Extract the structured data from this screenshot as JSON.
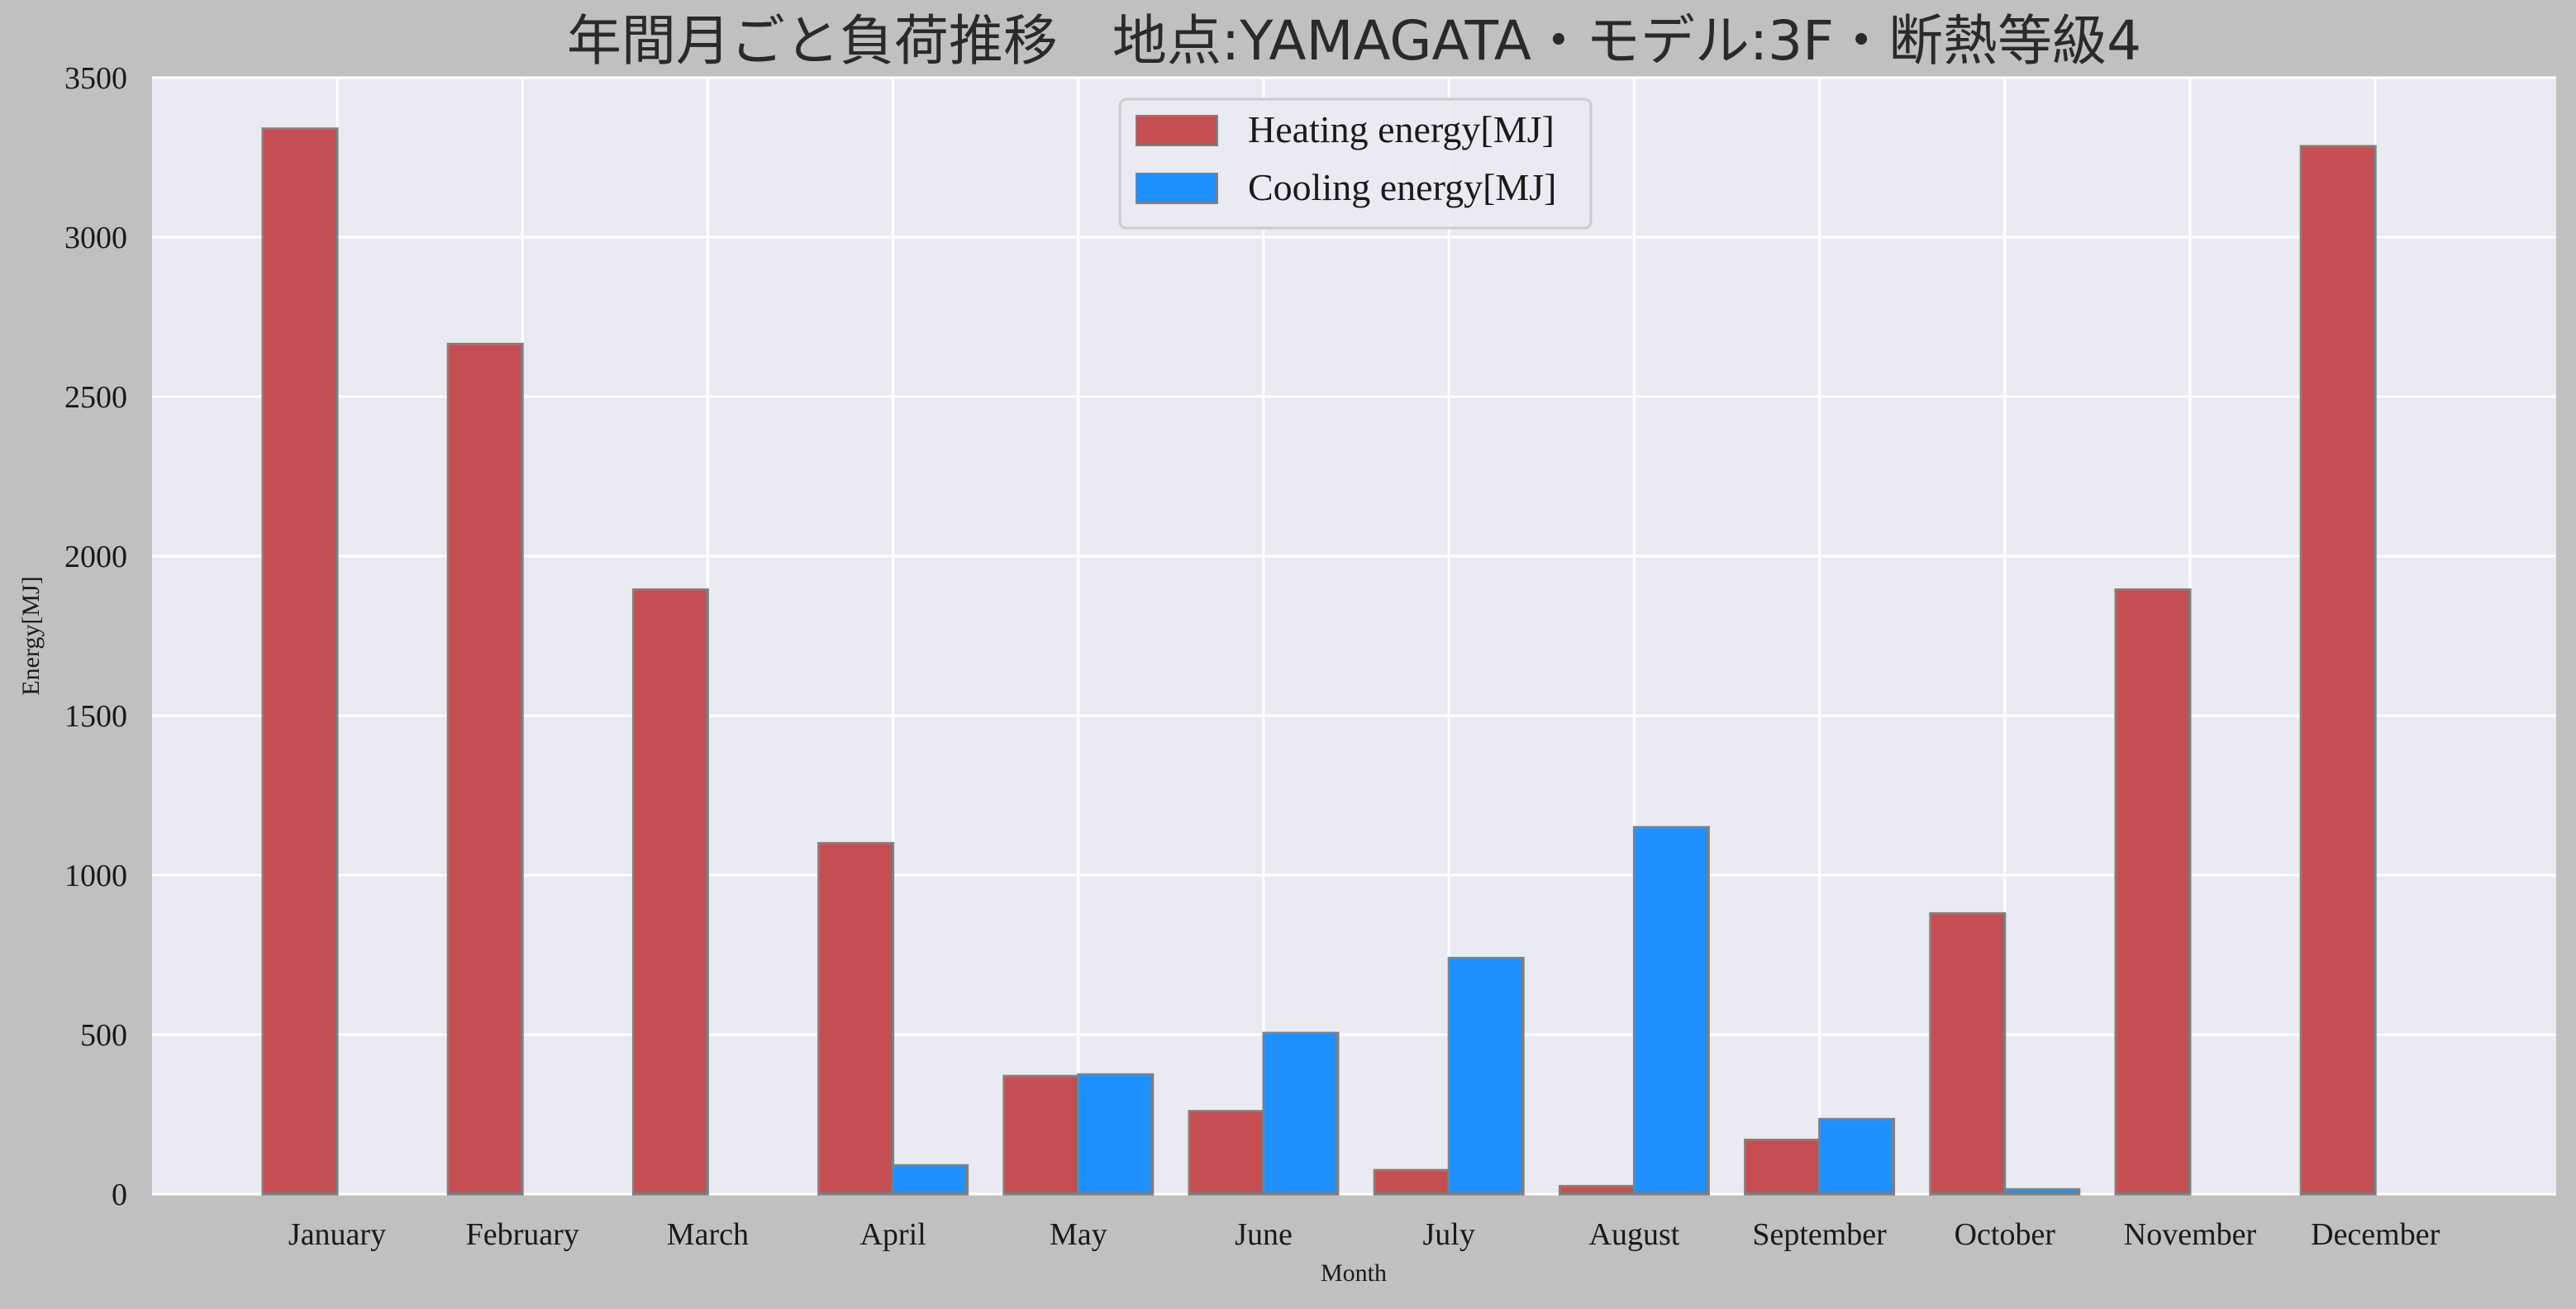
{
  "chart_data": {
    "type": "bar",
    "title": "年間月ごと負荷推移　地点:YAMAGATA・モデル:3F・断熱等級4",
    "xlabel": "Month",
    "ylabel": "Energy[MJ]",
    "ylim": [
      0,
      3500
    ],
    "yticks": [
      0,
      500,
      1000,
      1500,
      2000,
      2500,
      3000,
      3500
    ],
    "grid": true,
    "legend_position": "top-center",
    "categories": [
      "January",
      "February",
      "March",
      "April",
      "May",
      "June",
      "July",
      "August",
      "September",
      "October",
      "November",
      "December"
    ],
    "series": [
      {
        "name": "Heating energy[MJ]",
        "color": "#c44e52",
        "values": [
          3340,
          2665,
          1895,
          1100,
          370,
          260,
          75,
          25,
          170,
          880,
          1895,
          3285
        ]
      },
      {
        "name": "Cooling energy[MJ]",
        "color": "#1e90ff",
        "values": [
          0,
          0,
          0,
          90,
          375,
          505,
          740,
          1150,
          235,
          15,
          0,
          0
        ]
      }
    ]
  },
  "colors": {
    "background": "#c0c0c0",
    "plot_background": "#eaeaf2",
    "grid": "#ffffff",
    "bar_edge": "#808080"
  }
}
